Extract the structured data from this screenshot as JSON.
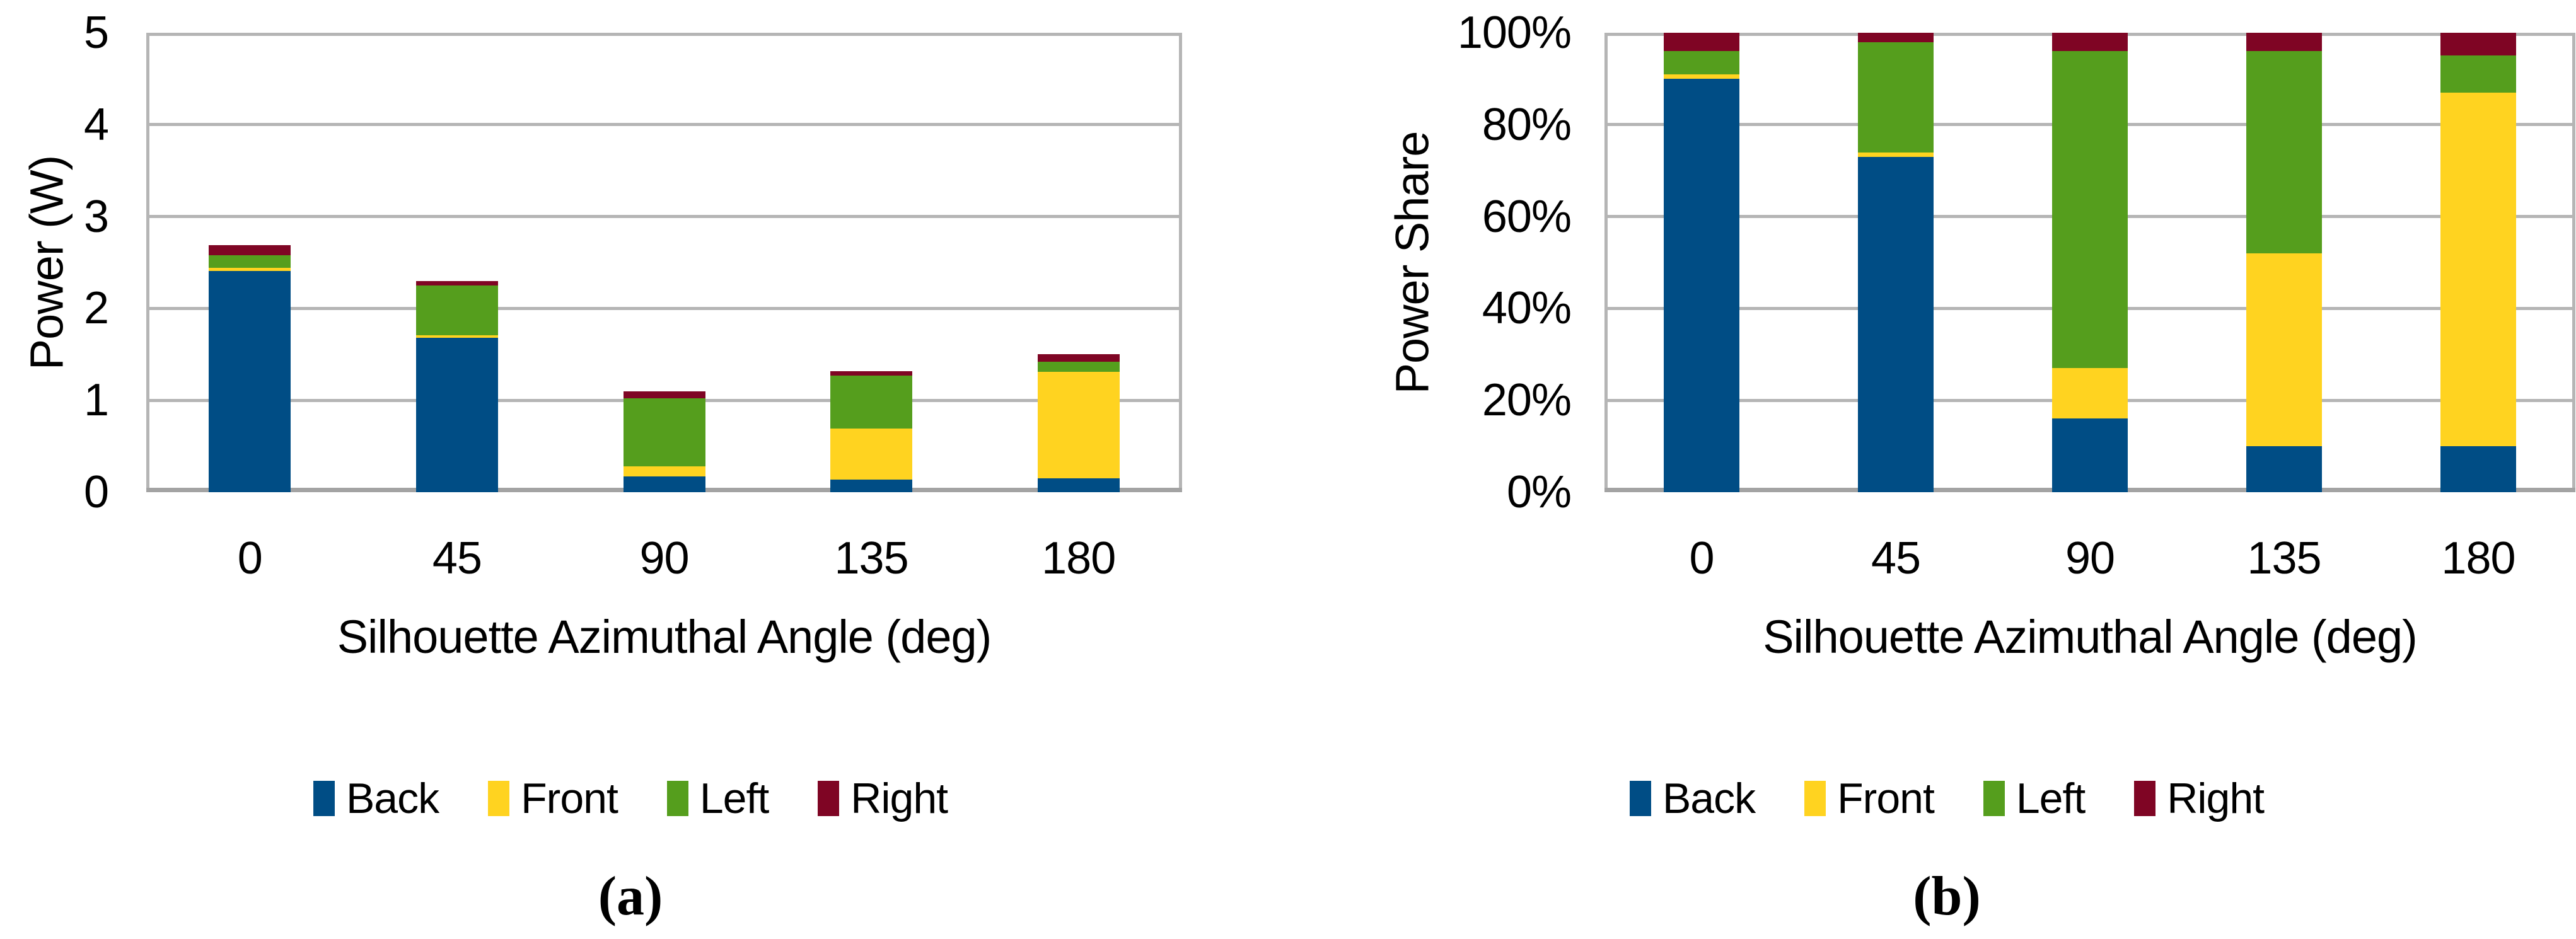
{
  "figure": {
    "background": "#FFFFFF",
    "grid_color": "#B5B5B5",
    "axis_line_color": "#A3A3A3",
    "text_color": "#000000"
  },
  "chart_data": [
    {
      "id": "a",
      "type": "bar",
      "stacked": true,
      "caption": "(a)",
      "xlabel": "Silhouette Azimuthal Angle (deg)",
      "ylabel": "Power (W)",
      "categories": [
        "0",
        "45",
        "90",
        "135",
        "180"
      ],
      "y_tick_labels": [
        "0",
        "1",
        "2",
        "3",
        "4",
        "5"
      ],
      "y_tick_values": [
        0,
        1,
        2,
        3,
        4,
        5
      ],
      "ylim": [
        0,
        5
      ],
      "grid": true,
      "legend_position": "bottom",
      "series": [
        {
          "name": "Back",
          "color": "#004D85",
          "values": [
            2.41,
            1.68,
            0.17,
            0.14,
            0.15
          ]
        },
        {
          "name": "Front",
          "color": "#FFD320",
          "values": [
            0.03,
            0.03,
            0.11,
            0.55,
            1.16
          ]
        },
        {
          "name": "Left",
          "color": "#559E1D",
          "values": [
            0.14,
            0.54,
            0.74,
            0.58,
            0.11
          ]
        },
        {
          "name": "Right",
          "color": "#7F0524",
          "values": [
            0.11,
            0.05,
            0.08,
            0.05,
            0.08
          ]
        }
      ]
    },
    {
      "id": "b",
      "type": "bar",
      "stacked": true,
      "caption": "(b)",
      "xlabel": "Silhouette Azimuthal Angle (deg)",
      "ylabel": "Power Share",
      "categories": [
        "0",
        "45",
        "90",
        "135",
        "180"
      ],
      "y_tick_labels": [
        "0%",
        "20%",
        "40%",
        "60%",
        "80%",
        "100%"
      ],
      "y_tick_values": [
        0,
        20,
        40,
        60,
        80,
        100
      ],
      "ylim": [
        0,
        100
      ],
      "grid": true,
      "legend_position": "bottom",
      "series": [
        {
          "name": "Back",
          "color": "#004D85",
          "values": [
            90,
            73,
            16,
            10,
            10
          ]
        },
        {
          "name": "Front",
          "color": "#FFD320",
          "values": [
            1,
            1,
            11,
            42,
            77
          ]
        },
        {
          "name": "Left",
          "color": "#559E1D",
          "values": [
            5,
            24,
            69,
            44,
            8
          ]
        },
        {
          "name": "Right",
          "color": "#7F0524",
          "values": [
            4,
            2,
            4,
            4,
            5
          ]
        }
      ]
    }
  ]
}
